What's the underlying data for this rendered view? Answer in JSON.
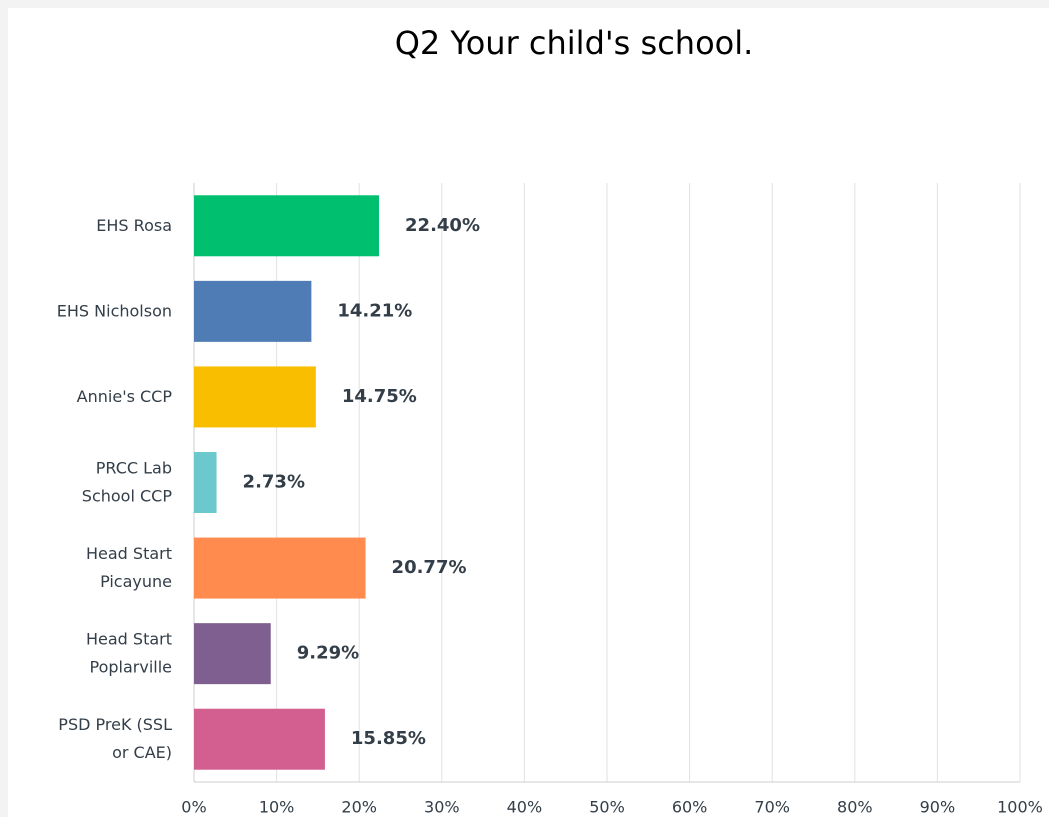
{
  "chart_data": {
    "type": "bar",
    "orientation": "horizontal",
    "title": "Q2 Your child's school.",
    "categories": [
      "EHS Rosa",
      "EHS Nicholson",
      "Annie's CCP",
      "PRCC Lab School CCP",
      "Head Start Picayune",
      "Head Start Poplarville",
      "PSD PreK (SSL or CAE)"
    ],
    "values": [
      22.4,
      14.21,
      14.75,
      2.73,
      20.77,
      9.29,
      15.85
    ],
    "value_labels": [
      "22.40%",
      "14.21%",
      "14.75%",
      "2.73%",
      "20.77%",
      "9.29%",
      "15.85%"
    ],
    "colors": [
      "#00bf6f",
      "#507cb6",
      "#f9be00",
      "#6bc8cd",
      "#ff8b4f",
      "#7f5f8f",
      "#d25f90"
    ],
    "xlim": [
      0,
      100
    ],
    "xticks": [
      {
        "value": 0,
        "label": "0%"
      },
      {
        "value": 10,
        "label": "10%"
      },
      {
        "value": 20,
        "label": "20%"
      },
      {
        "value": 30,
        "label": "30%"
      },
      {
        "value": 40,
        "label": "40%"
      },
      {
        "value": 50,
        "label": "50%"
      },
      {
        "value": 60,
        "label": "60%"
      },
      {
        "value": 70,
        "label": "70%"
      },
      {
        "value": 80,
        "label": "80%"
      },
      {
        "value": 90,
        "label": "90%"
      },
      {
        "value": 100,
        "label": "100%"
      }
    ],
    "grid": true
  }
}
